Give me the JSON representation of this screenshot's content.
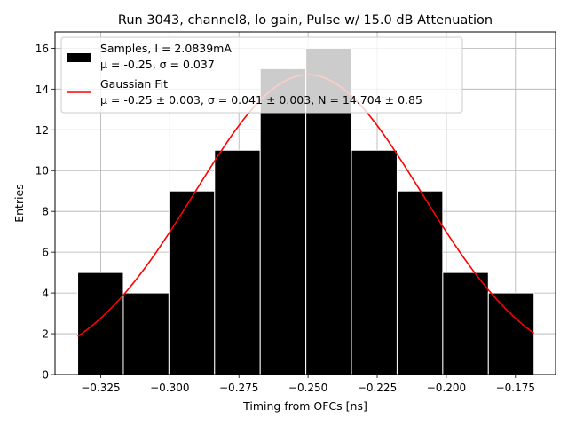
{
  "chart_data": {
    "type": "bar",
    "title": "Run 3043, channel8, lo gain, Pulse w/ 15.0 dB Attenuation",
    "xlabel": "Timing from OFCs [ns]",
    "ylabel": "Entries",
    "xlim": [
      -0.3415,
      -0.1605
    ],
    "ylim": [
      0,
      16.8
    ],
    "grid": true,
    "legend_position": "top-left",
    "bins": {
      "edges": [
        -0.3333,
        -0.3168,
        -0.3003,
        -0.2838,
        -0.2673,
        -0.2508,
        -0.2343,
        -0.2178,
        -0.2013,
        -0.1848,
        -0.1683
      ],
      "values": [
        5,
        4,
        9,
        11,
        15,
        16,
        11,
        9,
        5,
        4
      ],
      "color": "#000000",
      "highlight_color": "#c8c8c8"
    },
    "fit": {
      "mu": -0.25,
      "sigma": 0.041,
      "N": 14.704,
      "x_range": [
        -0.3333,
        -0.1683
      ],
      "color": "#ff0000"
    },
    "x_ticks": [
      {
        "value": -0.325,
        "label": "−0.325"
      },
      {
        "value": -0.3,
        "label": "−0.300"
      },
      {
        "value": -0.275,
        "label": "−0.275"
      },
      {
        "value": -0.25,
        "label": "−0.250"
      },
      {
        "value": -0.225,
        "label": "−0.225"
      },
      {
        "value": -0.2,
        "label": "−0.200"
      },
      {
        "value": -0.175,
        "label": "−0.175"
      }
    ],
    "y_ticks": [
      {
        "value": 0,
        "label": "0"
      },
      {
        "value": 2,
        "label": "2"
      },
      {
        "value": 4,
        "label": "4"
      },
      {
        "value": 6,
        "label": "6"
      },
      {
        "value": 8,
        "label": "8"
      },
      {
        "value": 10,
        "label": "10"
      },
      {
        "value": 12,
        "label": "12"
      },
      {
        "value": 14,
        "label": "14"
      },
      {
        "value": 16,
        "label": "16"
      }
    ],
    "legend": {
      "samples_line1": "Samples, I = 2.0839mA",
      "samples_line2": "μ = -0.25, σ = 0.037",
      "fit_line1": "Gaussian Fit",
      "fit_line2": "μ = -0.25 ± 0.003, σ = 0.041 ± 0.003, N = 14.704 ± 0.85"
    }
  }
}
